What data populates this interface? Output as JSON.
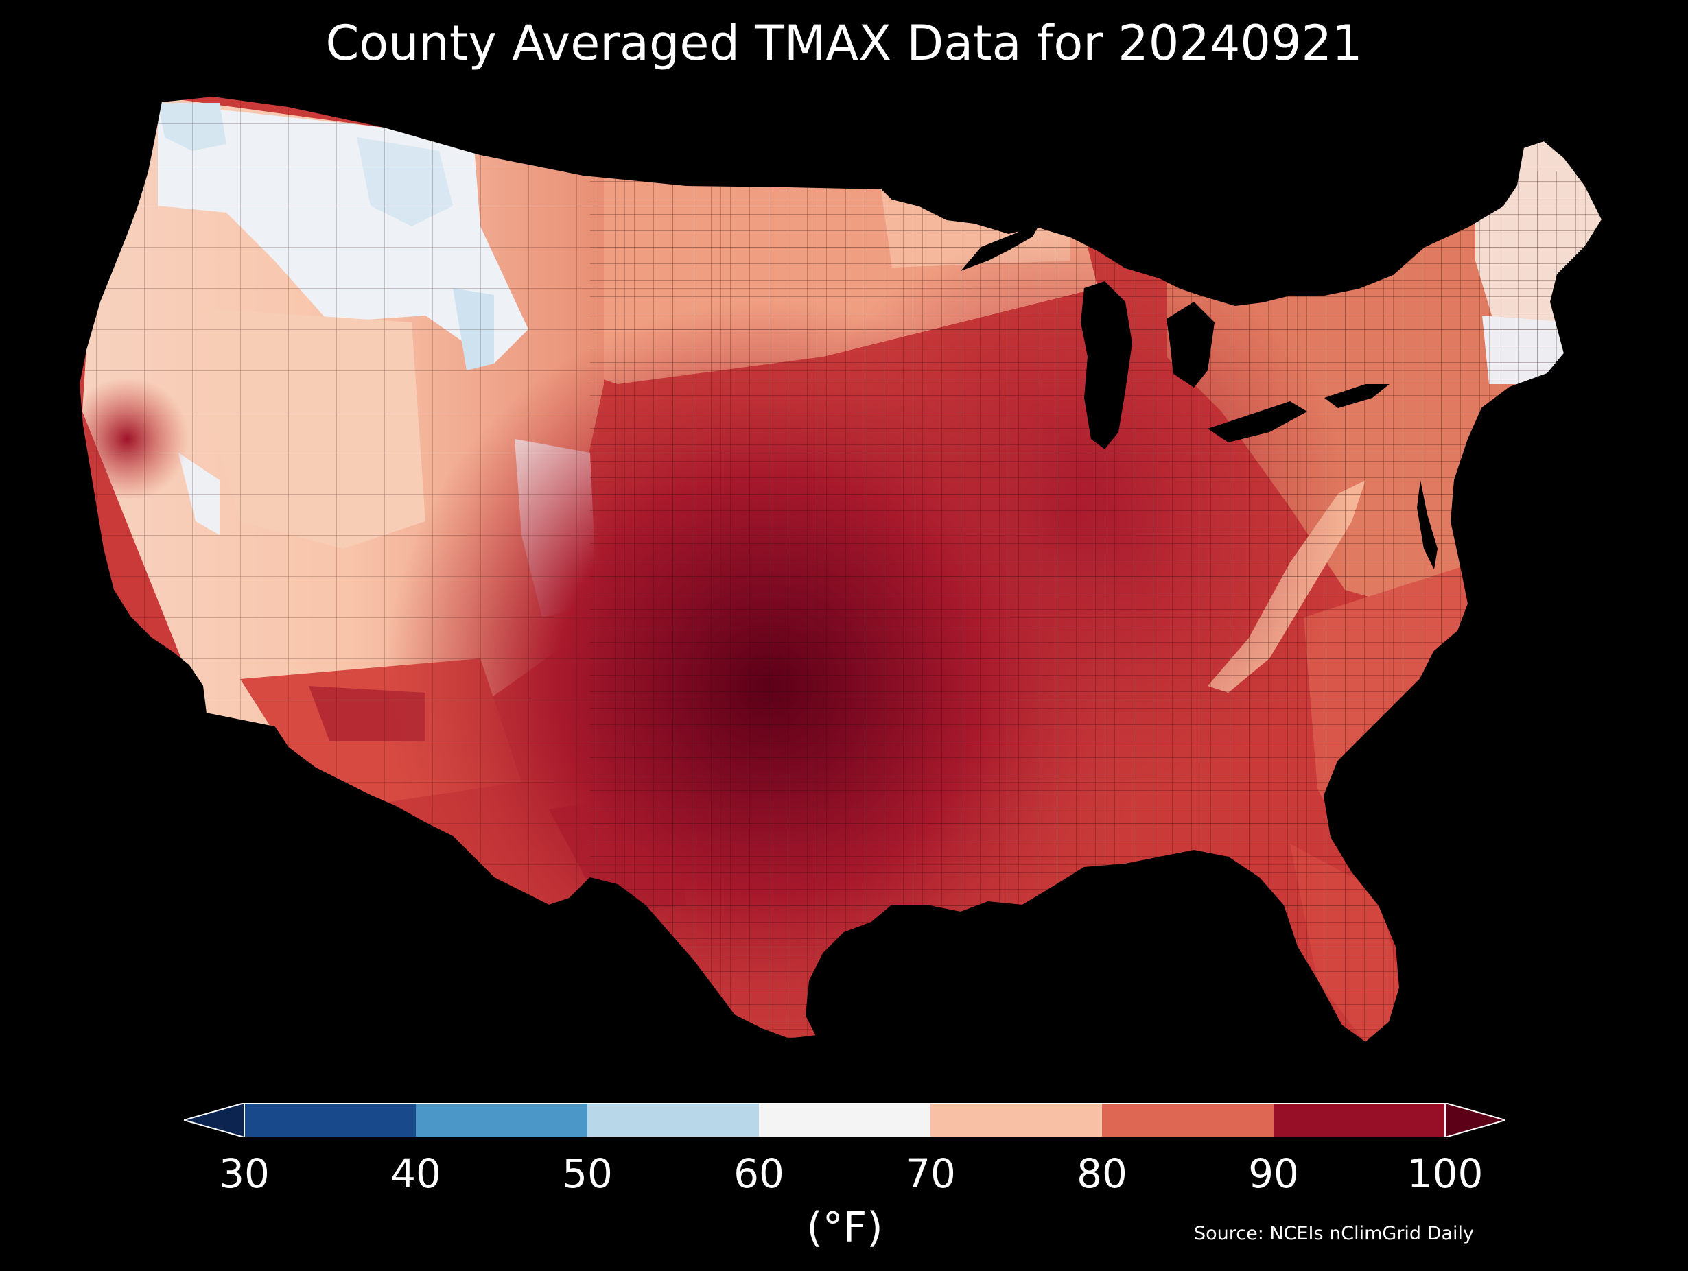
{
  "title": "County Averaged TMAX Data for 20240921",
  "colorbar": {
    "ticks": [
      "30",
      "40",
      "50",
      "60",
      "70",
      "80",
      "90",
      "100"
    ],
    "unit": "(°F)",
    "bins": [
      {
        "range": [
          30,
          40
        ],
        "color": "#18498a"
      },
      {
        "range": [
          40,
          50
        ],
        "color": "#4b97c8"
      },
      {
        "range": [
          50,
          60
        ],
        "color": "#b8d8ea"
      },
      {
        "range": [
          60,
          70
        ],
        "color": "#f4f4f4"
      },
      {
        "range": [
          70,
          80
        ],
        "color": "#f8c1a5"
      },
      {
        "range": [
          80,
          90
        ],
        "color": "#dd6753"
      },
      {
        "range": [
          90,
          100
        ],
        "color": "#960f26"
      }
    ],
    "under_color": "#0b2550",
    "over_color": "#5c0018",
    "extend": "both"
  },
  "source": "Source: NCEIs nClimGrid Daily",
  "map": {
    "region": "Contiguous United States counties",
    "variable": "TMAX",
    "date": "20240921",
    "background": "#000000",
    "border_color": "#2a0a0a"
  }
}
